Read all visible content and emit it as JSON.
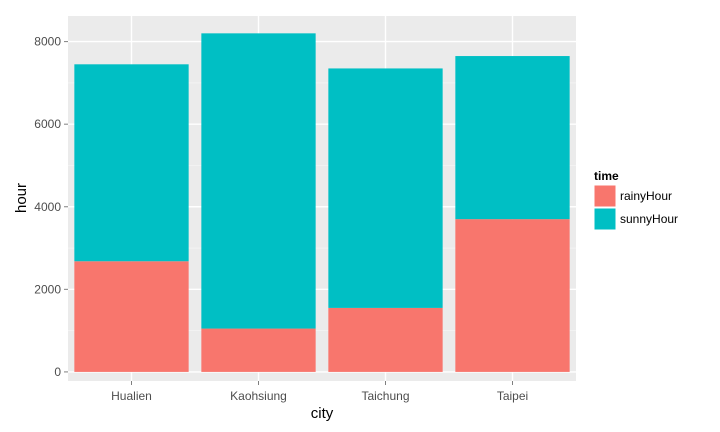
{
  "chart_data": {
    "type": "bar",
    "stacked": true,
    "categories": [
      "Hualien",
      "Kaohsiung",
      "Taichung",
      "Taipei"
    ],
    "series": [
      {
        "name": "rainyHour",
        "values": [
          2680,
          1050,
          1550,
          3700
        ],
        "color": "#F8766D"
      },
      {
        "name": "sunnyHour",
        "values": [
          4770,
          7150,
          5800,
          3950
        ],
        "color": "#00BFC4"
      }
    ],
    "xlabel": "city",
    "ylabel": "hour",
    "ylim": [
      -220,
      8620
    ],
    "yticks": [
      0,
      2000,
      4000,
      6000,
      8000
    ],
    "yticks_labels": [
      "0",
      "2000",
      "4000",
      "6000",
      "8000"
    ],
    "legend": {
      "title": "time",
      "placement": "right"
    },
    "grid": true,
    "panel_color": "#EBEBEB",
    "grid_color": "#FFFFFF"
  }
}
